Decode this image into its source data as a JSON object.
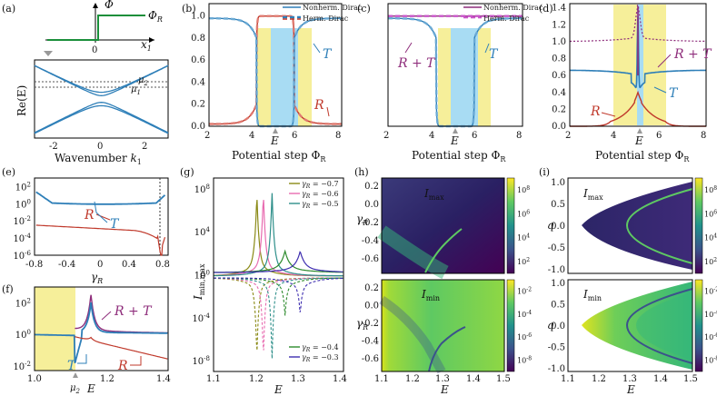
{
  "colors": {
    "transmission": "#2e7fb8",
    "reflection": "#c0392b",
    "sum": "#8e2d7b",
    "highlight_yellow": "#f6ef9a",
    "highlight_blue": "#a8dcf3",
    "step_green": "#1a8f3a",
    "olive": "#8a8a16",
    "pink": "#e86bb0",
    "teal": "#2e8f8a",
    "darkgreen": "#2e8b2e",
    "navy": "#3f2fb0"
  },
  "panels": {
    "a": {
      "label": "(a)",
      "y_axis": "Φ",
      "x_axis": "x",
      "x_sub": "1",
      "step_label": "Φ",
      "step_sub": "R",
      "zero": "0",
      "band_y_label": "Re(E)",
      "mu2": "μ",
      "mu2_sub": "2",
      "mu1": "μ",
      "mu1_sub": "1",
      "xlabel": "Wavenumber",
      "xlabel_var": "k",
      "xlabel_sub": "1",
      "xticks": [
        "-2",
        "0",
        "2"
      ]
    },
    "b": {
      "label": "(b)",
      "legend": [
        "Nonherm. Dirac",
        "Herm. Dirac"
      ],
      "T": "T",
      "R": "R",
      "xlabel": "Potential step Φ",
      "xlabel_sub": "R",
      "E": "E",
      "xticks": [
        "2",
        "4",
        "6",
        "8"
      ],
      "yticks": [
        "0.0",
        "0.2",
        "0.4",
        "0.6",
        "0.8",
        "1.0"
      ]
    },
    "c": {
      "label": "(c)",
      "legend": [
        "Nonherm. Dirac",
        "Herm. Dirac"
      ],
      "RT": "R + T",
      "T": "T",
      "xlabel": "Potential step Φ",
      "xlabel_sub": "R",
      "E": "E",
      "xticks": [
        "2",
        "4",
        "6",
        "8"
      ]
    },
    "d": {
      "label": "(d)",
      "RT": "R + T",
      "T": "T",
      "R": "R",
      "xlabel": "Potential step Φ",
      "xlabel_sub": "R",
      "E": "E",
      "xticks": [
        "2",
        "4",
        "6",
        "8"
      ],
      "yticks": [
        "0.0",
        "0.2",
        "0.4",
        "0.6",
        "0.8",
        "1.0",
        "1.2",
        "1.4"
      ]
    },
    "e": {
      "label": "(e)",
      "R": "R",
      "T": "T",
      "xlabel": "γ",
      "xlabel_sub": "R",
      "xticks": [
        "-0.8",
        "-0.4",
        "0",
        "0.4",
        "0.8"
      ],
      "yticks": [
        "10",
        "10",
        "10",
        "10",
        "10"
      ],
      "ytick_exps": [
        "2",
        "0",
        "-2",
        "-4",
        "-6"
      ]
    },
    "f": {
      "label": "(f)",
      "RT": "R + T",
      "T": "T",
      "R": "R",
      "mu": "μ",
      "mu_sub": "2",
      "xlabel": "E",
      "xticks": [
        "1.0",
        "1.2",
        "1.4"
      ],
      "yticks": [
        "10",
        "10",
        "10"
      ],
      "ytick_exps": [
        "2",
        "0",
        "-2"
      ]
    },
    "g": {
      "label": "(g)",
      "ylabel": "I",
      "ylabel_sub": "min,max",
      "xlabel": "E",
      "xticks": [
        "1.1",
        "1.2",
        "1.3",
        "1.4"
      ],
      "yticks": [
        "10",
        "10",
        "10",
        "10",
        "10"
      ],
      "ytick_exps": [
        "8",
        "4",
        "0",
        "-4",
        "-8"
      ],
      "legend_top": [
        {
          "text": "γ",
          "sub": "R",
          "val": " = −0.7"
        },
        {
          "text": "γ",
          "sub": "R",
          "val": " = −0.6"
        },
        {
          "text": "γ",
          "sub": "R",
          "val": " = −0.5"
        }
      ],
      "legend_bottom": [
        {
          "text": "γ",
          "sub": "R",
          "val": " = −0.4"
        },
        {
          "text": "γ",
          "sub": "R",
          "val": " = −0.3"
        }
      ]
    },
    "h": {
      "label": "(h)",
      "top_title": "I",
      "top_sub": "max",
      "bottom_title": "I",
      "bottom_sub": "min",
      "ylabel": "γ",
      "ylabel_sub": "R",
      "xlabel": "E",
      "xticks": [
        "1.1",
        "1.2",
        "1.3",
        "1.4",
        "1.5"
      ],
      "yticks": [
        "0.2",
        "0.0",
        "-0.2",
        "-0.4",
        "-0.6"
      ],
      "cbar_top": [
        "10",
        "10",
        "10",
        "10"
      ],
      "cbar_top_exps": [
        "8",
        "6",
        "4",
        "2"
      ],
      "cbar_bottom": [
        "10",
        "10",
        "10",
        "10"
      ],
      "cbar_bottom_exps": [
        "-2",
        "-4",
        "-6",
        "-8"
      ]
    },
    "i": {
      "label": "(i)",
      "top_title": "I",
      "top_sub": "max",
      "bottom_title": "I",
      "bottom_sub": "min",
      "ylabel": "q",
      "xlabel": "E",
      "xticks": [
        "1.1",
        "1.2",
        "1.3",
        "1.4",
        "1.5"
      ],
      "yticks": [
        "1.0",
        "0.5",
        "0.0",
        "-0.5",
        "-1.0"
      ],
      "cbar_top": [
        "10",
        "10",
        "10",
        "10"
      ],
      "cbar_top_exps": [
        "8",
        "6",
        "4",
        "2"
      ],
      "cbar_bottom": [
        "10",
        "10",
        "10",
        "10"
      ],
      "cbar_bottom_exps": [
        "-2",
        "-4",
        "-6",
        "-8"
      ]
    }
  },
  "chart_data": [
    {
      "panel": "a",
      "type": "line",
      "xlabel": "Wavenumber k1",
      "ylabel": "Re(E)",
      "xlim": [
        -3,
        3
      ],
      "series": [
        {
          "values_desc": "upper bands: hyperbolic E=sqrt(k^2+m^2)",
          "x": [
            -3,
            -2,
            -1,
            0,
            1,
            2,
            3
          ],
          "y": [
            3.1,
            2.2,
            1.3,
            0.6,
            1.3,
            2.2,
            3.1
          ]
        },
        {
          "x": [
            -3,
            -2,
            -1,
            0,
            1,
            2,
            3
          ],
          "y": [
            2.9,
            1.9,
            1.0,
            0.3,
            1.0,
            1.9,
            2.9
          ]
        },
        {
          "x": [
            -3,
            -2,
            -1,
            0,
            1,
            2,
            3
          ],
          "y": [
            -2.9,
            -1.9,
            -1.0,
            -0.3,
            -1.0,
            -1.9,
            -2.9
          ]
        },
        {
          "x": [
            -3,
            -2,
            -1,
            0,
            1,
            2,
            3
          ],
          "y": [
            -3.1,
            -2.2,
            -1.3,
            -0.6,
            -1.3,
            -2.2,
            -3.1
          ]
        }
      ]
    },
    {
      "panel": "b",
      "type": "line",
      "xlim": [
        2,
        8
      ],
      "ylim": [
        0,
        1.05
      ],
      "highlight_yellow": [
        4.1,
        5.9
      ],
      "highlight_blue": [
        4.6,
        5.4
      ],
      "series": [
        {
          "name": "T",
          "x": [
            2,
            3,
            3.6,
            4.0,
            4.15,
            4.3,
            5.7,
            5.85,
            6.0,
            6.4,
            7,
            8
          ],
          "y": [
            1.0,
            0.99,
            0.97,
            0.9,
            0.5,
            0.0,
            0.0,
            0.5,
            0.9,
            0.97,
            0.99,
            1.0
          ]
        },
        {
          "name": "R",
          "x": [
            2,
            3,
            3.6,
            4.0,
            4.15,
            4.3,
            5.7,
            5.85,
            6.0,
            6.4,
            7,
            8
          ],
          "y": [
            0.0,
            0.01,
            0.03,
            0.1,
            0.5,
            1.0,
            1.0,
            0.5,
            0.1,
            0.03,
            0.01,
            0.0
          ]
        }
      ]
    },
    {
      "panel": "c",
      "type": "line",
      "xlim": [
        2,
        8
      ],
      "ylim": [
        0,
        1.05
      ],
      "series": [
        {
          "name": "R + T",
          "x": [
            2,
            8
          ],
          "y": [
            1.0,
            1.0
          ]
        },
        {
          "name": "T",
          "x": [
            2,
            3,
            3.6,
            4.0,
            4.15,
            4.3,
            5.7,
            5.85,
            6.0,
            6.4,
            7,
            8
          ],
          "y": [
            1.0,
            0.99,
            0.97,
            0.9,
            0.5,
            0.0,
            0.0,
            0.5,
            0.9,
            0.97,
            0.99,
            1.0
          ]
        }
      ]
    },
    {
      "panel": "d",
      "type": "line",
      "xlim": [
        2,
        8
      ],
      "ylim": [
        0,
        1.45
      ],
      "series": [
        {
          "name": "R + T",
          "x": [
            2,
            3,
            4,
            4.5,
            4.85,
            5.0,
            5.15,
            5.5,
            6,
            7,
            8
          ],
          "y": [
            0.99,
            1.0,
            1.02,
            1.05,
            1.2,
            1.42,
            1.2,
            1.05,
            1.02,
            1.0,
            0.99
          ]
        },
        {
          "name": "T",
          "x": [
            2,
            3,
            4,
            4.5,
            4.85,
            5.0,
            5.15,
            5.5,
            6,
            7,
            8
          ],
          "y": [
            0.66,
            0.66,
            0.64,
            0.6,
            0.5,
            1.42,
            0.5,
            0.6,
            0.64,
            0.66,
            0.66
          ]
        },
        {
          "name": "R",
          "x": [
            2,
            3,
            4,
            4.5,
            4.85,
            5.0,
            5.15,
            5.5,
            6,
            7,
            8
          ],
          "y": [
            0.0,
            0.0,
            0.02,
            0.08,
            0.3,
            0.4,
            0.3,
            0.08,
            0.02,
            0.0,
            0.0
          ]
        }
      ]
    },
    {
      "panel": "e",
      "type": "line",
      "xlabel": "γR",
      "xlim": [
        -0.8,
        0.85
      ],
      "ylog": true,
      "ylim_exp": [
        -6,
        3
      ],
      "series": [
        {
          "name": "T",
          "x": [
            -0.8,
            -0.6,
            -0.4,
            -0.2,
            0,
            0.2,
            0.4,
            0.6,
            0.75,
            0.8
          ],
          "log10y": [
            1.5,
            0.5,
            0.15,
            0.0,
            -0.05,
            -0.05,
            0.0,
            0.2,
            0.6,
            1.0
          ]
        },
        {
          "name": "R",
          "x": [
            -0.8,
            -0.6,
            -0.4,
            -0.2,
            0,
            0.2,
            0.4,
            0.6,
            0.7,
            0.76,
            0.8
          ],
          "log10y": [
            -2.5,
            -2.6,
            -2.75,
            -2.9,
            -3.0,
            -3.15,
            -3.35,
            -3.7,
            -4.3,
            -5.8,
            -4.5
          ]
        }
      ]
    },
    {
      "panel": "f",
      "type": "line",
      "xlabel": "E",
      "xlim": [
        1.0,
        1.45
      ],
      "ylog": true,
      "ylim_exp": [
        -2,
        3
      ],
      "series": [
        {
          "name": "R + T",
          "x": [
            1.12,
            1.15,
            1.17,
            1.19,
            1.2,
            1.22,
            1.26,
            1.3,
            1.45
          ],
          "log10y": [
            0.0,
            0.3,
            0.8,
            2.4,
            0.9,
            0.5,
            0.3,
            0.2,
            0.05
          ]
        },
        {
          "name": "T",
          "x": [
            1.0,
            1.05,
            1.1,
            1.12,
            1.14,
            1.17,
            1.19,
            1.2,
            1.22,
            1.3,
            1.45
          ],
          "log10y": [
            0.0,
            0.0,
            -0.1,
            -1.9,
            -0.3,
            0.2,
            2.4,
            0.8,
            0.4,
            0.2,
            0.05
          ]
        },
        {
          "name": "R",
          "x": [
            1.12,
            1.15,
            1.18,
            1.2,
            1.25,
            1.3,
            1.45
          ],
          "log10y": [
            0.0,
            -0.3,
            -0.3,
            -0.4,
            -0.8,
            -1.1,
            -1.5
          ]
        }
      ]
    },
    {
      "panel": "g",
      "type": "line",
      "xlabel": "E",
      "ylabel": "Imin,max",
      "xlim": [
        1.1,
        1.4
      ],
      "ylog": true,
      "ylim_exp": [
        -9,
        9
      ],
      "series": [
        {
          "name": "γR = −0.7",
          "peak_E": 1.2
        },
        {
          "name": "γR = −0.6",
          "peak_E": 1.215
        },
        {
          "name": "γR = −0.5",
          "peak_E": 1.235
        },
        {
          "name": "γR = −0.4",
          "peak_E": 1.265
        },
        {
          "name": "γR = −0.3",
          "peak_E": 1.3
        }
      ]
    },
    {
      "panel": "h",
      "type": "heatmap",
      "xlabel": "E",
      "ylabel": "γR",
      "xlim": [
        1.1,
        1.5
      ],
      "ylim": [
        -0.8,
        0.2
      ]
    },
    {
      "panel": "i",
      "type": "heatmap",
      "xlabel": "E",
      "ylabel": "q",
      "xlim": [
        1.1,
        1.5
      ],
      "ylim": [
        -1.0,
        1.0
      ]
    }
  ]
}
